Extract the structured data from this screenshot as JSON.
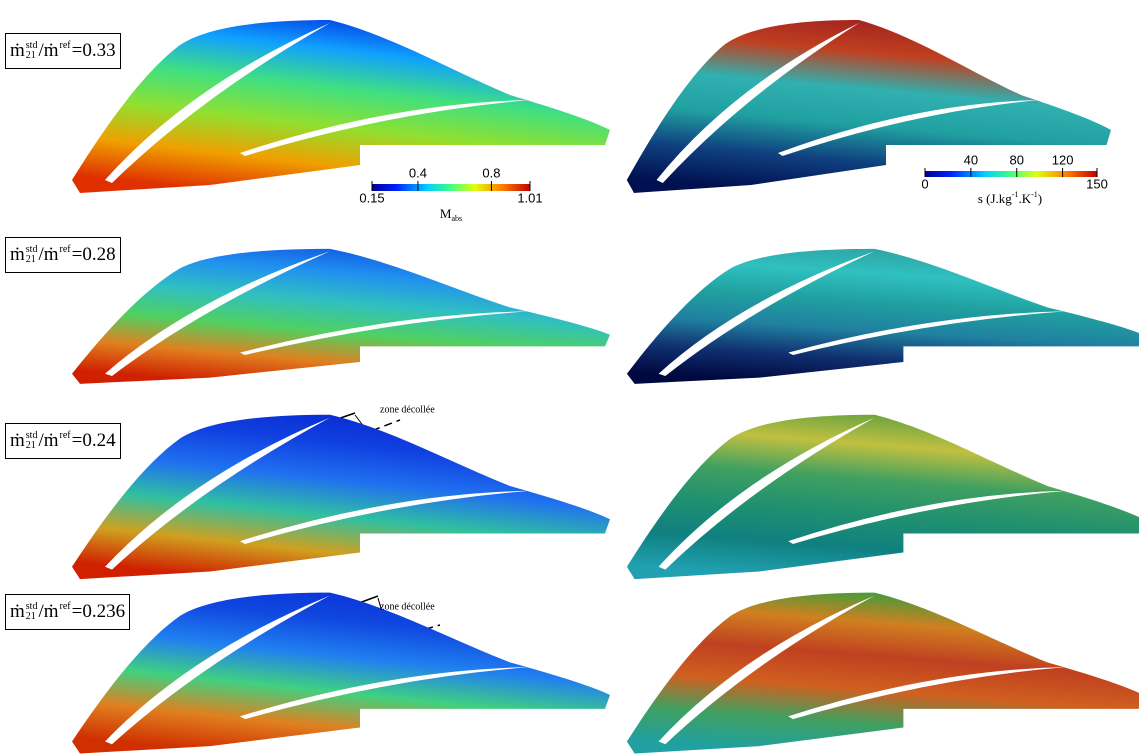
{
  "ratio_label": {
    "symbol": "ṁ",
    "subscript": "21",
    "superscript": "std",
    "slash": "/",
    "ref_symbol": "ṁ",
    "ref_superscript": "ref"
  },
  "rows": [
    {
      "ratio": "=0.33"
    },
    {
      "ratio": "=0.28"
    },
    {
      "ratio": "=0.24"
    },
    {
      "ratio": "=0.236"
    }
  ],
  "mach_colorbar": {
    "lim": [
      0.15,
      1.01
    ],
    "ticks": [
      0.15,
      0.4,
      0.8,
      1.01
    ],
    "label": "M",
    "label_subscript": "abs"
  },
  "entropy_colorbar": {
    "lim": [
      0,
      150
    ],
    "ticks": [
      0,
      40,
      80,
      120,
      150
    ],
    "label_parts": [
      {
        "text": "s (J.kg"
      },
      {
        "text": "-1",
        "sup": true
      },
      {
        "text": ".K"
      },
      {
        "text": "-1",
        "sup": true
      },
      {
        "text": ")"
      }
    ]
  },
  "annotations": [
    {
      "text": "zone décollée"
    },
    {
      "text": "zone décollée"
    }
  ]
}
